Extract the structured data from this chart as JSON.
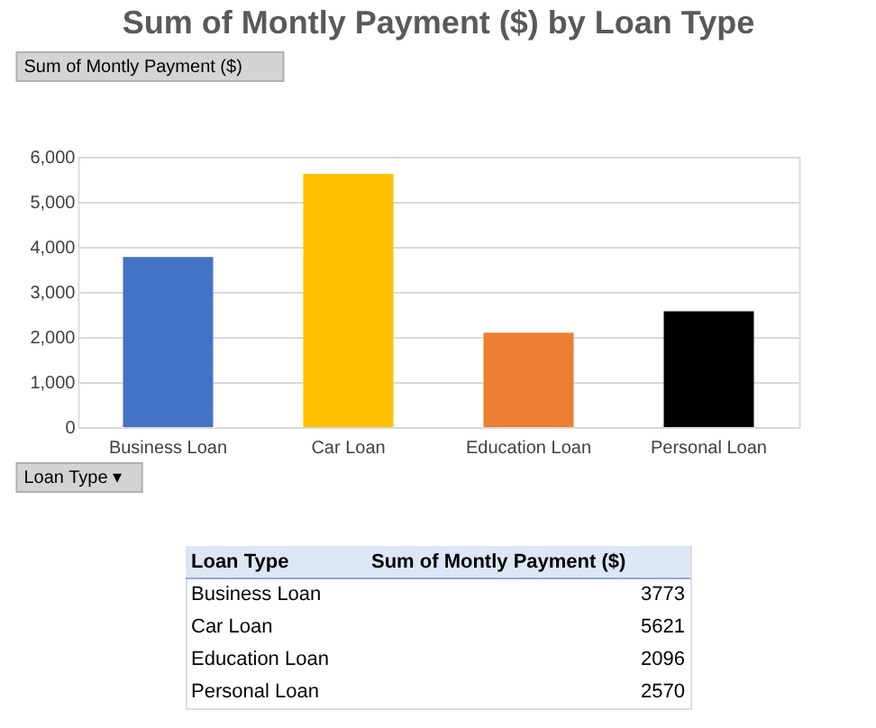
{
  "chart_data": [
    {
      "type": "bar",
      "title": "Sum of Montly Payment ($) by Loan Type",
      "annotations": [
        "Sum of Montly Payment ($)",
        "Loan Type ▾"
      ],
      "categories": [
        "Business Loan",
        "Car Loan",
        "Education Loan",
        "Personal Loan"
      ],
      "values": [
        3773,
        5621,
        2096,
        2570
      ],
      "colors": [
        "#4472c4",
        "#ffc000",
        "#ed7d31",
        "#000000"
      ],
      "ylim": [
        0,
        6000
      ],
      "yticks": [
        0,
        {
          "value": 1000,
          "label": "1,000"
        },
        {
          "value": 2000,
          "label": "2,000"
        },
        {
          "value": 3000,
          "label": "3,000"
        },
        {
          "value": 4000,
          "label": "4,000"
        },
        {
          "value": 5000,
          "label": "5,000"
        },
        {
          "value": 6000,
          "label": "6,000"
        }
      ],
      "grid": "y"
    },
    {
      "type": "other",
      "annotations": [
        "Loan Type",
        "Sum of Montly Payment ($)"
      ],
      "categories": [
        "Business Loan",
        "Car Loan",
        "Education Loan",
        "Personal Loan"
      ],
      "values": [
        3773,
        5621,
        2096,
        2570
      ],
      "data_labels": true
    }
  ]
}
